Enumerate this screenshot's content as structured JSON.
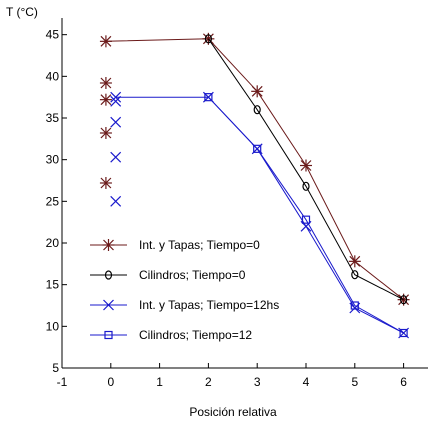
{
  "chart_data": {
    "type": "line",
    "title": "",
    "ylabel": "T (°C)",
    "xlabel": "Posición relativa",
    "xlim": [
      -1,
      6.5
    ],
    "ylim": [
      5,
      47
    ],
    "xticks": [
      -1,
      0,
      1,
      2,
      3,
      4,
      5,
      6
    ],
    "yticks": [
      5,
      10,
      15,
      20,
      25,
      30,
      35,
      40,
      45
    ],
    "grid": false,
    "legend_position": "lower-left",
    "series": [
      {
        "name": "Int. y Tapas; Tiempo=0",
        "color": "#6b1a1a",
        "marker": "asterisk",
        "x": [
          -0.1,
          2,
          3,
          4,
          5,
          6
        ],
        "y": [
          44.2,
          44.5,
          38.2,
          29.3,
          17.8,
          13.2
        ],
        "extra_points": [
          {
            "x": -0.1,
            "y": 39.2
          },
          {
            "x": -0.1,
            "y": 37.2
          },
          {
            "x": -0.1,
            "y": 33.2
          },
          {
            "x": -0.1,
            "y": 27.2
          }
        ]
      },
      {
        "name": "Cilindros; Tiempo=0",
        "color": "#000000",
        "marker": "circle",
        "x": [
          2,
          3,
          4,
          5,
          6
        ],
        "y": [
          44.5,
          36.0,
          26.8,
          16.2,
          13.2
        ],
        "extra_points": []
      },
      {
        "name": "Int. y Tapas; Tiempo=12hs",
        "color": "#1a1acc",
        "marker": "x",
        "x": [
          0.1,
          2,
          3,
          4,
          5,
          6
        ],
        "y": [
          37.5,
          37.5,
          31.3,
          22.0,
          12.2,
          9.2
        ],
        "extra_points": [
          {
            "x": 0.1,
            "y": 37.0
          },
          {
            "x": 0.1,
            "y": 34.5
          },
          {
            "x": 0.1,
            "y": 30.3
          },
          {
            "x": 0.1,
            "y": 25.0
          }
        ]
      },
      {
        "name": "Cilindros; Tiempo=12",
        "color": "#1a1acc",
        "marker": "square",
        "x": [
          2,
          3,
          4,
          5,
          6
        ],
        "y": [
          37.5,
          31.3,
          22.8,
          12.5,
          9.2
        ],
        "extra_points": []
      }
    ]
  }
}
